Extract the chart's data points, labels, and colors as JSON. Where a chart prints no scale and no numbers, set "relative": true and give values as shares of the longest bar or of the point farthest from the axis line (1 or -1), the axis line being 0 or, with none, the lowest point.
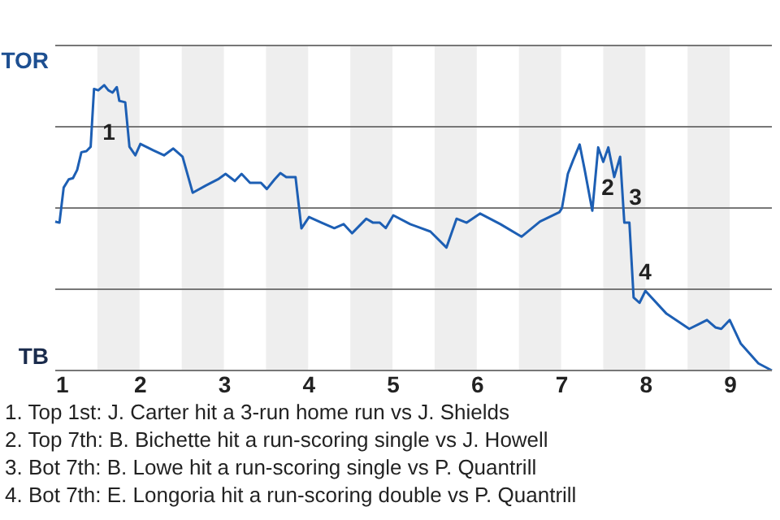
{
  "chart_data": {
    "type": "line",
    "relative": true,
    "x": [
      1.0,
      1.05,
      1.1,
      1.16,
      1.21,
      1.26,
      1.31,
      1.37,
      1.42,
      1.46,
      1.51,
      1.58,
      1.63,
      1.68,
      1.73,
      1.76,
      1.83,
      1.88,
      1.95,
      2.01,
      2.16,
      2.29,
      2.4,
      2.51,
      2.63,
      2.79,
      2.93,
      3.02,
      3.13,
      3.21,
      3.31,
      3.44,
      3.51,
      3.6,
      3.67,
      3.74,
      3.85,
      3.92,
      4.01,
      4.16,
      4.31,
      4.42,
      4.52,
      4.69,
      4.77,
      4.85,
      4.92,
      5.01,
      5.21,
      5.45,
      5.64,
      5.76,
      5.88,
      6.04,
      6.28,
      6.53,
      6.75,
      6.98,
      7.01,
      7.08,
      7.14,
      7.22,
      7.28,
      7.37,
      7.44,
      7.5,
      7.56,
      7.63,
      7.7,
      7.75,
      7.81,
      7.86,
      7.93,
      8.0,
      8.25,
      8.52,
      8.63,
      8.73,
      8.83,
      8.9,
      9.0,
      9.13,
      9.34,
      9.5
    ],
    "series": [
      {
        "color": "#1d5fb4",
        "values": [
          0.522,
          0.518,
          0.641,
          0.67,
          0.674,
          0.703,
          0.765,
          0.769,
          0.784,
          0.987,
          0.982,
          1,
          0.982,
          0.974,
          0.993,
          0.945,
          0.94,
          0.784,
          0.754,
          0.794,
          0.772,
          0.754,
          0.778,
          0.749,
          0.623,
          0.649,
          0.67,
          0.689,
          0.664,
          0.689,
          0.658,
          0.658,
          0.636,
          0.669,
          0.692,
          0.678,
          0.678,
          0.498,
          0.538,
          0.518,
          0.499,
          0.513,
          0.481,
          0.532,
          0.518,
          0.518,
          0.499,
          0.544,
          0.513,
          0.487,
          0.431,
          0.532,
          0.518,
          0.55,
          0.513,
          0.469,
          0.522,
          0.555,
          0.569,
          0.689,
          0.735,
          0.792,
          0.703,
          0.56,
          0.782,
          0.731,
          0.782,
          0.678,
          0.749,
          0.518,
          0.518,
          0.256,
          0.237,
          0.279,
          0.199,
          0.146,
          0.162,
          0.177,
          0.151,
          0.146,
          0.177,
          0.095,
          0.025,
          0
        ]
      }
    ],
    "xlim": [
      1,
      9.5
    ],
    "xticks": [
      1,
      2,
      3,
      4,
      5,
      6,
      7,
      8,
      9
    ],
    "grid": "y",
    "bands": [
      {
        "axis": "x",
        "from": 1.5,
        "to": 2,
        "color": "#eeeeee"
      },
      {
        "axis": "x",
        "from": 2.5,
        "to": 3,
        "color": "#eeeeee"
      },
      {
        "axis": "x",
        "from": 3.5,
        "to": 4,
        "color": "#eeeeee"
      },
      {
        "axis": "x",
        "from": 4.5,
        "to": 5,
        "color": "#eeeeee"
      },
      {
        "axis": "x",
        "from": 5.5,
        "to": 6,
        "color": "#eeeeee"
      },
      {
        "axis": "x",
        "from": 6.5,
        "to": 7,
        "color": "#eeeeee"
      },
      {
        "axis": "x",
        "from": 7.5,
        "to": 8,
        "color": "#eeeeee"
      },
      {
        "axis": "x",
        "from": 8.5,
        "to": 9,
        "color": "#eeeeee"
      }
    ],
    "annotations": [
      "TOR",
      "TB",
      "1",
      "2",
      "3",
      "4",
      "1. Top 1st: J. Carter hit a 3-run home run vs J. Shields",
      "2. Top 7th: B. Bichette hit a run-scoring single vs J. Howell",
      "3. Bot 7th: B. Lowe hit a run-scoring single vs P. Quantrill",
      "4. Bot 7th: E. Longoria hit a run-scoring double vs P. Quantrill"
    ]
  }
}
